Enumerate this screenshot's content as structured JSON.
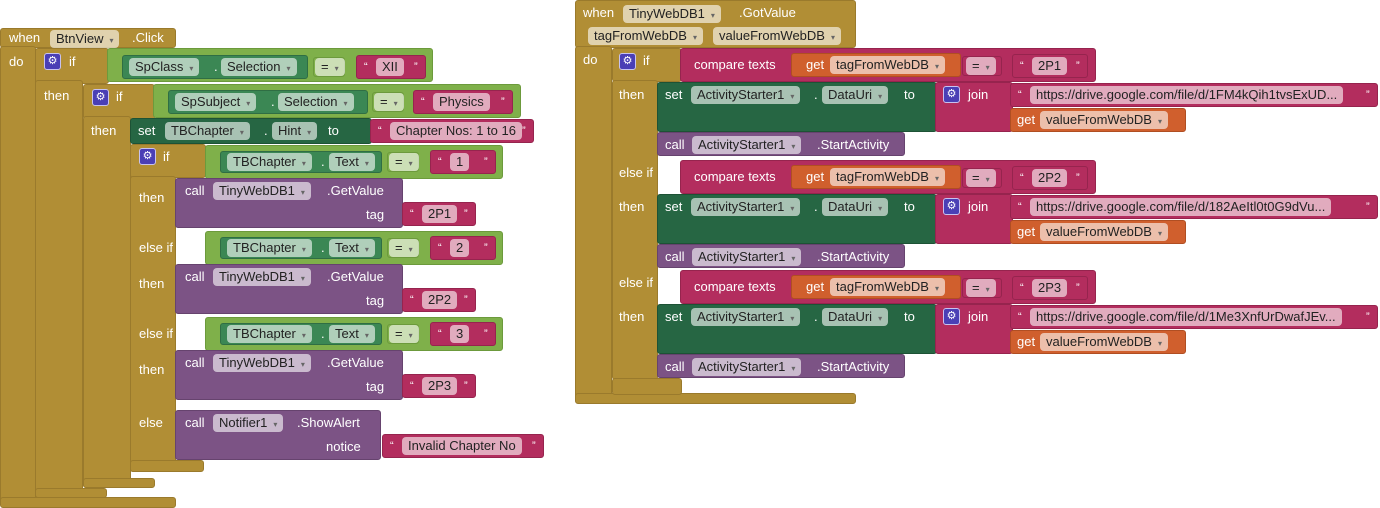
{
  "kw": {
    "when": "when",
    "do": "do",
    "if": "if",
    "then": "then",
    "else_if": "else if",
    "else": "else",
    "set": "set",
    "to": "to",
    "call": "call",
    "tag": "tag",
    "notice": "notice",
    "get": "get",
    "join": "join",
    "compare": "compare texts",
    "eq": "=",
    "dot": ".",
    "arrow": "▾",
    "lq": "“",
    "rq": "”"
  },
  "left": {
    "component": "BtnView",
    "event": ".Click",
    "cond1": {
      "comp": "SpClass",
      "prop": "Selection",
      "value": "XII"
    },
    "cond2": {
      "comp": "SpSubject",
      "prop": "Selection",
      "value": "Physics"
    },
    "set": {
      "comp": "TBChapter",
      "prop": "Hint",
      "value": "Chapter Nos: 1 to 16"
    },
    "branches": [
      {
        "comp": "TBChapter",
        "prop": "Text",
        "value": "1",
        "call_comp": "TinyWebDB1",
        "method": ".GetValue",
        "tag": "2P1"
      },
      {
        "comp": "TBChapter",
        "prop": "Text",
        "value": "2",
        "call_comp": "TinyWebDB1",
        "method": ".GetValue",
        "tag": "2P2"
      },
      {
        "comp": "TBChapter",
        "prop": "Text",
        "value": "3",
        "call_comp": "TinyWebDB1",
        "method": ".GetValue",
        "tag": "2P3"
      }
    ],
    "else": {
      "comp": "Notifier1",
      "method": ".ShowAlert",
      "notice": "Invalid Chapter No"
    }
  },
  "right": {
    "component": "TinyWebDB1",
    "event": ".GotValue",
    "params": [
      "tagFromWebDB",
      "valueFromWebDB"
    ],
    "branches": [
      {
        "var": "tagFromWebDB",
        "value": "2P1",
        "set_comp": "ActivityStarter1",
        "prop": "DataUri",
        "url": "https://drive.google.com/file/d/1FM4kQih1tvsExUD...",
        "get_var": "valueFromWebDB",
        "call_comp": "ActivityStarter1",
        "method": ".StartActivity"
      },
      {
        "var": "tagFromWebDB",
        "value": "2P2",
        "set_comp": "ActivityStarter1",
        "prop": "DataUri",
        "url": "https://drive.google.com/file/d/182AeItl0t0G9dVu...",
        "get_var": "valueFromWebDB",
        "call_comp": "ActivityStarter1",
        "method": ".StartActivity"
      },
      {
        "var": "tagFromWebDB",
        "value": "2P3",
        "set_comp": "ActivityStarter1",
        "prop": "DataUri",
        "url": "https://drive.google.com/file/d/1Me3XnfUrDwafJEv...",
        "get_var": "valueFromWebDB",
        "call_comp": "ActivityStarter1",
        "method": ".StartActivity"
      }
    ]
  },
  "colors": {
    "control": "#b18e35",
    "logic": "#7fb04a",
    "component_get": "#3b8754",
    "component_set": "#266643",
    "text": "#b32d5e",
    "call": "#7c5385",
    "variable": "#d05f2d"
  }
}
